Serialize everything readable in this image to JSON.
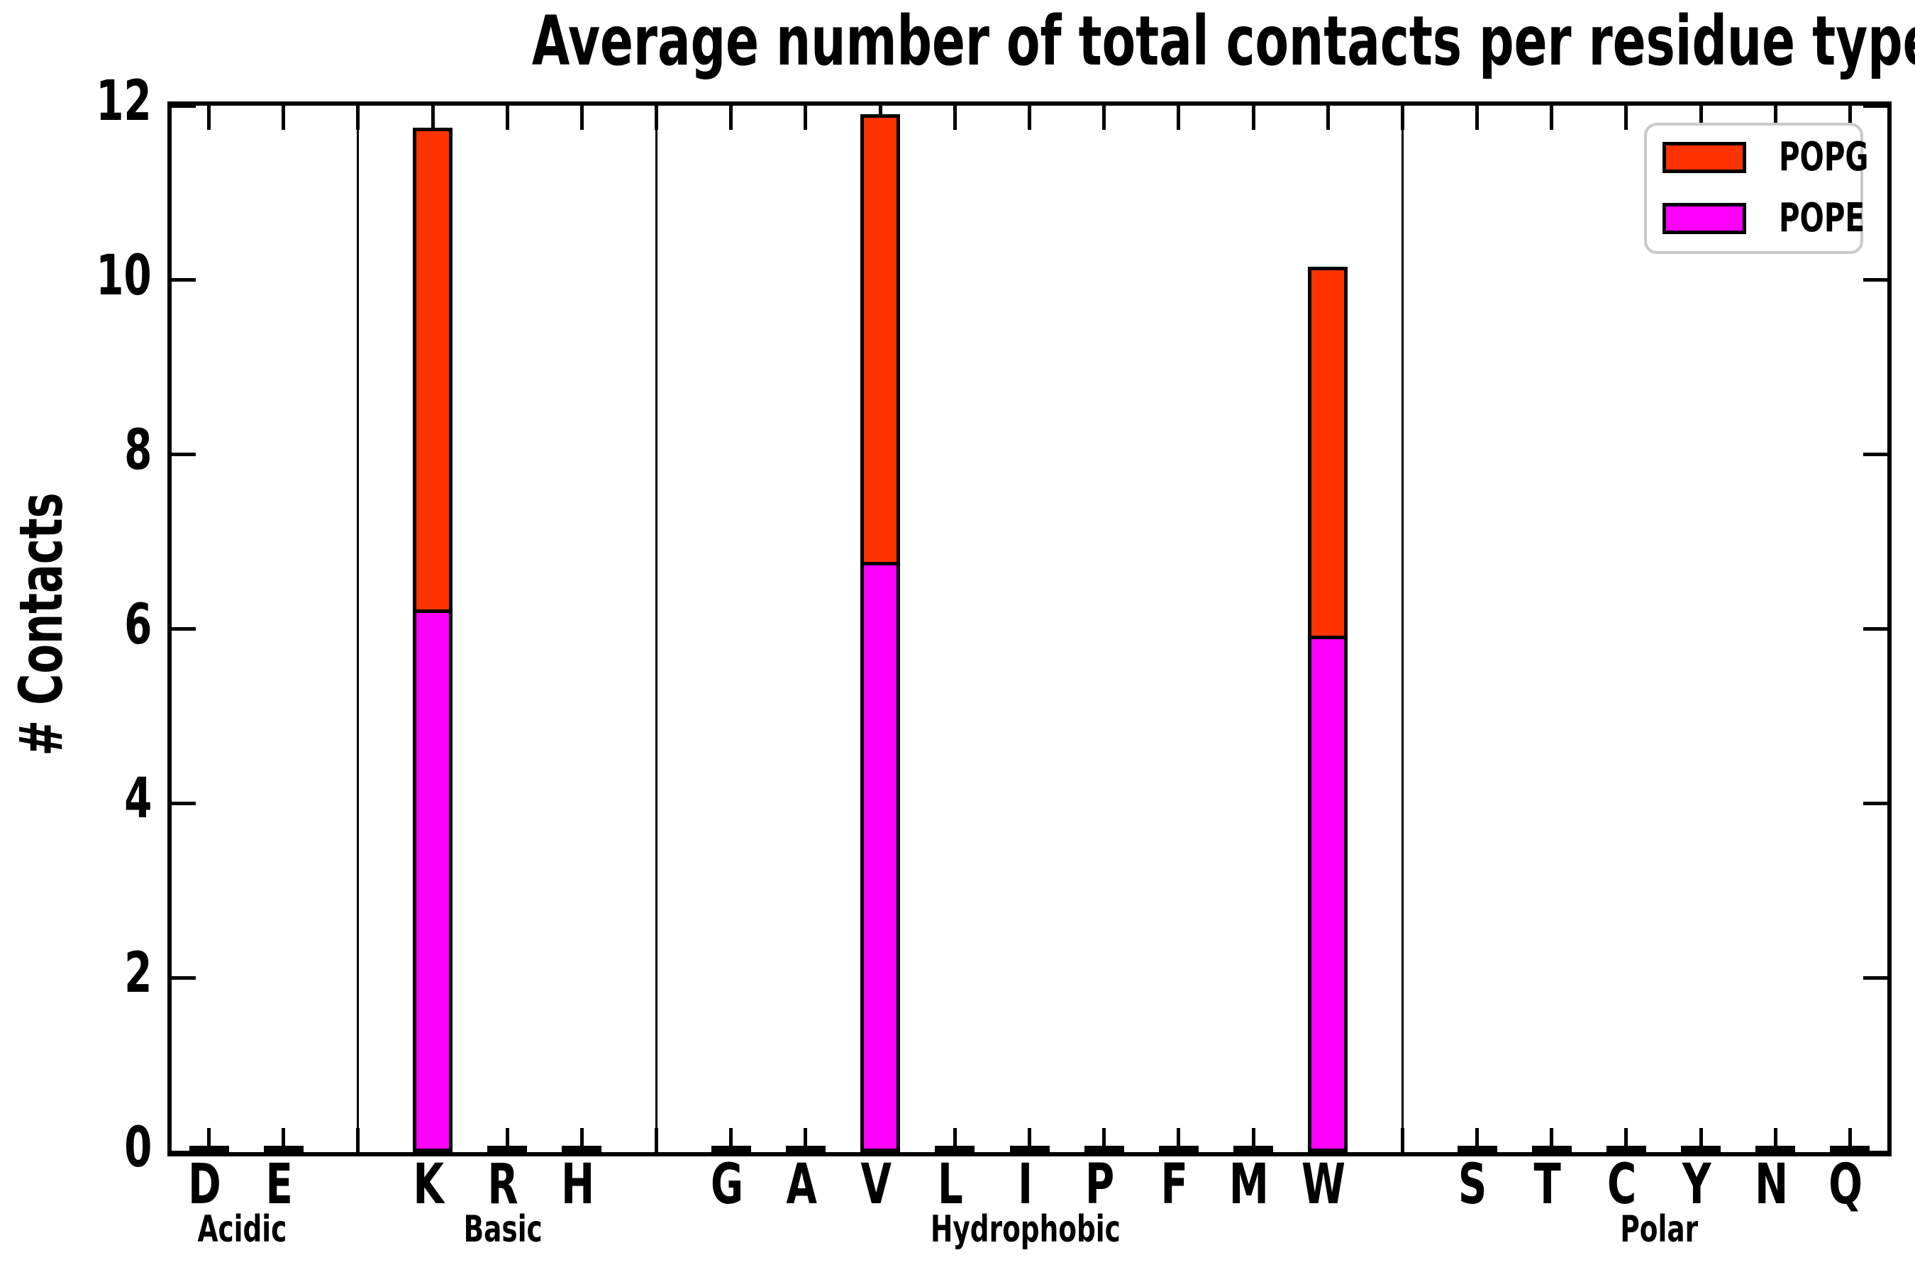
{
  "title": "Average number of total contacts per residue type",
  "ylabel": "# Contacts",
  "legend": {
    "items": [
      {
        "label": "POPG",
        "color": "#ff3300"
      },
      {
        "label": "POPE",
        "color": "#ff00ff"
      }
    ]
  },
  "colors": {
    "popg": "#ff3300",
    "pope": "#ff00ff",
    "axis": "#000000",
    "legend_border": "#c9c9c9"
  },
  "chart_data": {
    "type": "bar",
    "stacked": true,
    "title": "Average number of total contacts per residue type",
    "xlabel": "",
    "ylabel": "# Contacts",
    "ylim": [
      0,
      12
    ],
    "yticks": [
      0,
      2,
      4,
      6,
      8,
      10,
      12
    ],
    "grid": false,
    "legend_position": "upper right",
    "groups": [
      {
        "label": "Acidic",
        "residues": [
          "D",
          "E"
        ]
      },
      {
        "label": "Basic",
        "residues": [
          "K",
          "R",
          "H"
        ]
      },
      {
        "label": "Hydrophobic",
        "residues": [
          "G",
          "A",
          "V",
          "L",
          "I",
          "P",
          "F",
          "M",
          "W"
        ]
      },
      {
        "label": "Polar",
        "residues": [
          "S",
          "T",
          "C",
          "Y",
          "N",
          "Q"
        ]
      }
    ],
    "categories": [
      "D",
      "E",
      "K",
      "R",
      "H",
      "G",
      "A",
      "V",
      "L",
      "I",
      "P",
      "F",
      "M",
      "W",
      "S",
      "T",
      "C",
      "Y",
      "N",
      "Q"
    ],
    "series": [
      {
        "name": "POPE",
        "color": "#ff00ff",
        "values": [
          0.02,
          0.02,
          6.2,
          0.02,
          0.02,
          0.02,
          0.02,
          6.75,
          0.02,
          0.02,
          0.02,
          0.02,
          0.02,
          5.9,
          0.02,
          0.02,
          0.02,
          0.02,
          0.02,
          0.02
        ]
      },
      {
        "name": "POPG",
        "color": "#ff3300",
        "values": [
          0.02,
          0.02,
          5.55,
          0.02,
          0.02,
          0.02,
          0.02,
          5.15,
          0.02,
          0.02,
          0.02,
          0.02,
          0.02,
          4.25,
          0.02,
          0.02,
          0.02,
          0.02,
          0.02,
          0.02
        ]
      }
    ]
  }
}
